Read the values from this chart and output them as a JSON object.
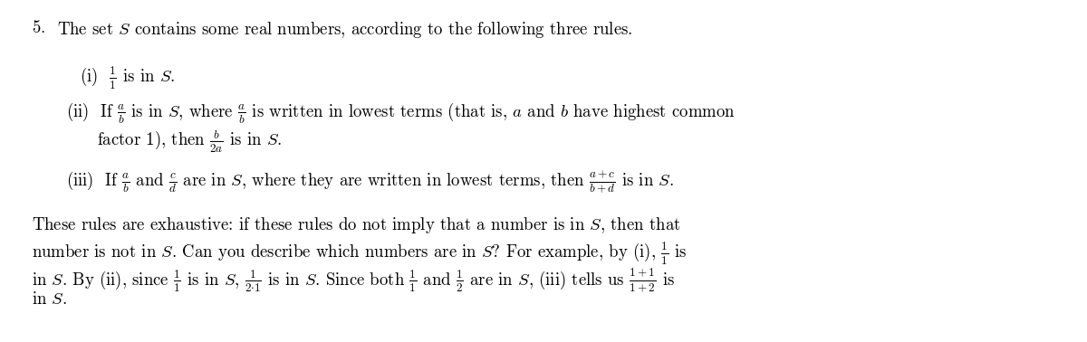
{
  "background_color": "#ffffff",
  "fig_width": 12.0,
  "fig_height": 3.78,
  "dpi": 100,
  "text_color": "#000000",
  "font_size": 13.5
}
